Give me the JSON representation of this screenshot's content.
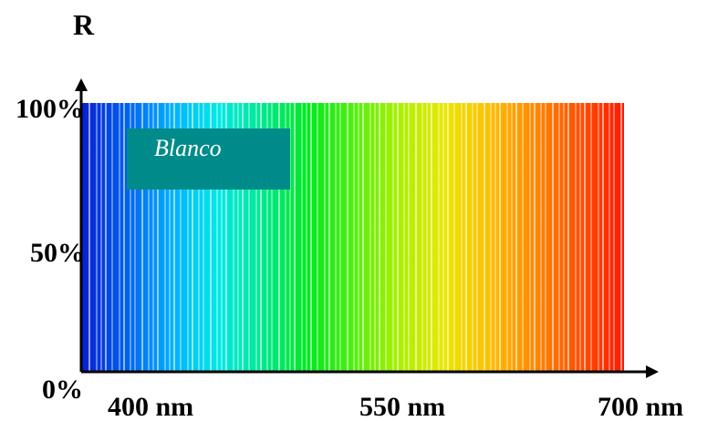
{
  "chart_data": {
    "type": "bar",
    "title": "",
    "ylabel": "R",
    "xlabel": "",
    "xlim": [
      400,
      700
    ],
    "ylim": [
      0,
      100
    ],
    "x_ticks": [
      {
        "value": 400,
        "label": "400 nm"
      },
      {
        "value": 550,
        "label": "550 nm"
      },
      {
        "value": 700,
        "label": "700 nm"
      }
    ],
    "y_ticks": [
      {
        "value": 0,
        "label": "0%"
      },
      {
        "value": 50,
        "label": "50%"
      },
      {
        "value": 100,
        "label": "100%"
      }
    ],
    "series": [
      {
        "name": "Blanco",
        "reflectance_percent": 100,
        "x_range": [
          400,
          700
        ],
        "fill": "visible-spectrum-gradient"
      }
    ],
    "legend": {
      "label": "Blanco",
      "position": "top-left",
      "color": "#008b8b"
    },
    "grid": false,
    "spectrum_colors": [
      "#0a1ed0",
      "#0060f0",
      "#00b0ff",
      "#00e8e8",
      "#00e890",
      "#00e820",
      "#50ee10",
      "#a8f000",
      "#e8e800",
      "#ffc000",
      "#ff8a00",
      "#ff5000",
      "#ff1a00"
    ]
  }
}
